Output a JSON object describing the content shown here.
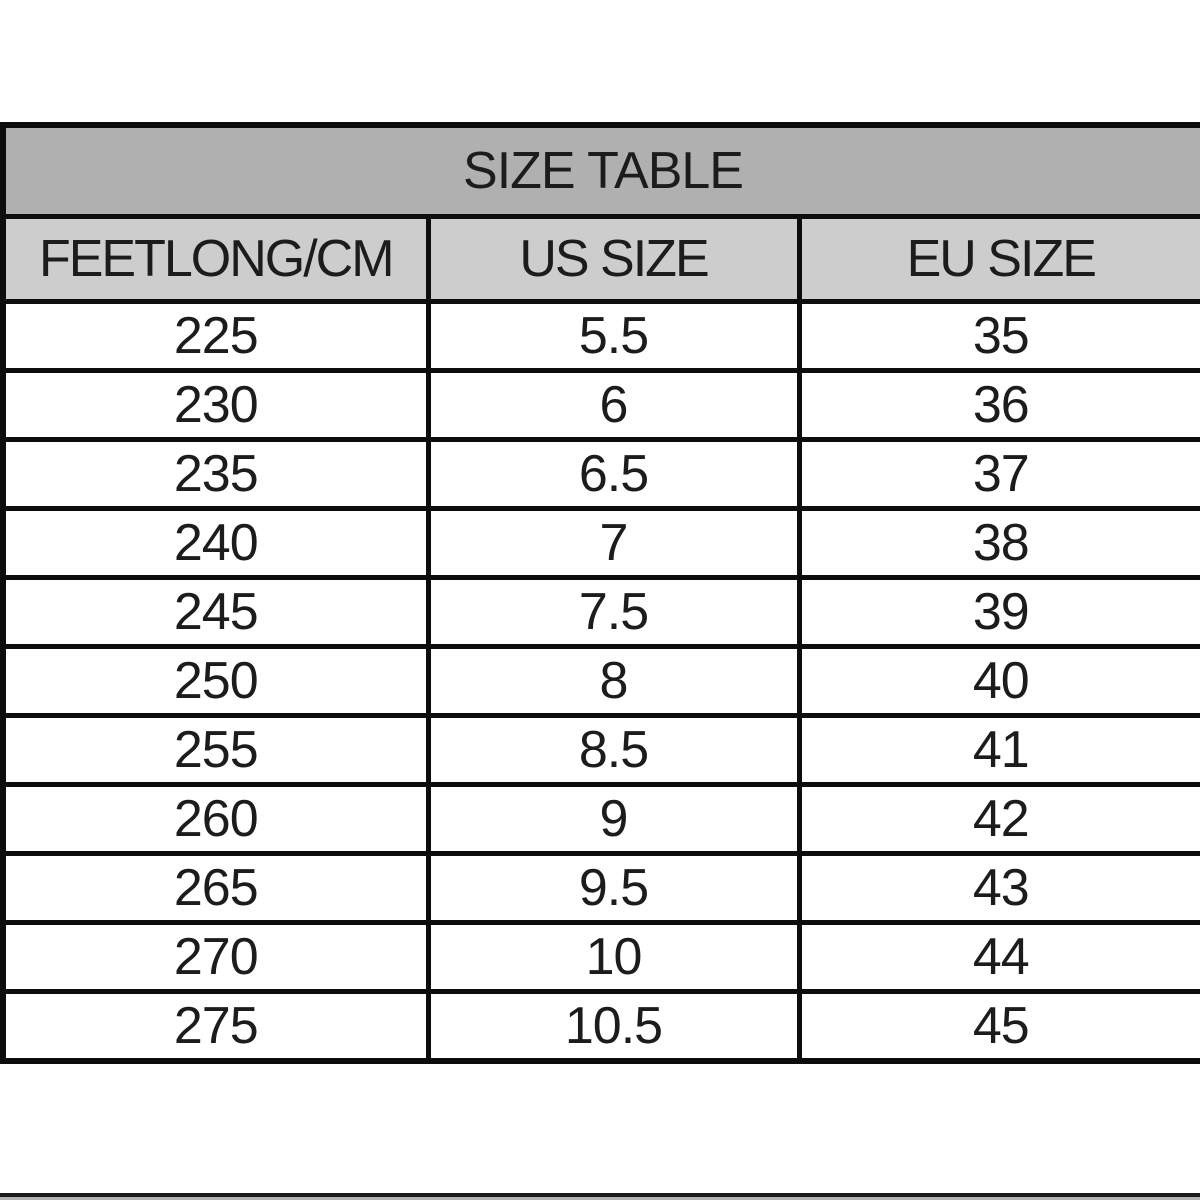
{
  "page": {
    "background": "#ffffff"
  },
  "size_chart": {
    "title": "SIZE TABLE",
    "columns": [
      "FEETLONG/CM",
      "US SIZE",
      "EU SIZE"
    ],
    "rows": [
      {
        "feetlong_cm": "225",
        "us_size": "5.5",
        "eu_size": "35"
      },
      {
        "feetlong_cm": "230",
        "us_size": "6",
        "eu_size": "36"
      },
      {
        "feetlong_cm": "235",
        "us_size": "6.5",
        "eu_size": "37"
      },
      {
        "feetlong_cm": "240",
        "us_size": "7",
        "eu_size": "38"
      },
      {
        "feetlong_cm": "245",
        "us_size": "7.5",
        "eu_size": "39"
      },
      {
        "feetlong_cm": "250",
        "us_size": "8",
        "eu_size": "40"
      },
      {
        "feetlong_cm": "255",
        "us_size": "8.5",
        "eu_size": "41"
      },
      {
        "feetlong_cm": "260",
        "us_size": "9",
        "eu_size": "42"
      },
      {
        "feetlong_cm": "265",
        "us_size": "9.5",
        "eu_size": "43"
      },
      {
        "feetlong_cm": "270",
        "us_size": "10",
        "eu_size": "44"
      },
      {
        "feetlong_cm": "275",
        "us_size": "10.5",
        "eu_size": "45"
      }
    ],
    "colors": {
      "title_background": "#b0b0b0",
      "header_background": "#cdcdcd",
      "border": "#0d0d0d",
      "text": "#1c1c1c",
      "row_background": "#ffffff"
    }
  },
  "chart_data": {
    "type": "table",
    "title": "SIZE TABLE",
    "columns": [
      "FEETLONG/CM",
      "US SIZE",
      "EU SIZE"
    ],
    "rows": [
      [
        "225",
        "5.5",
        "35"
      ],
      [
        "230",
        "6",
        "36"
      ],
      [
        "235",
        "6.5",
        "37"
      ],
      [
        "240",
        "7",
        "38"
      ],
      [
        "245",
        "7.5",
        "39"
      ],
      [
        "250",
        "8",
        "40"
      ],
      [
        "255",
        "8.5",
        "41"
      ],
      [
        "260",
        "9",
        "42"
      ],
      [
        "265",
        "9.5",
        "43"
      ],
      [
        "270",
        "10",
        "44"
      ],
      [
        "275",
        "10.5",
        "45"
      ]
    ]
  }
}
